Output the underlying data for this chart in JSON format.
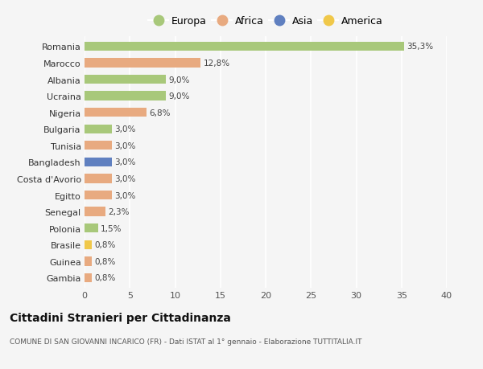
{
  "countries": [
    "Romania",
    "Marocco",
    "Albania",
    "Ucraina",
    "Nigeria",
    "Bulgaria",
    "Tunisia",
    "Bangladesh",
    "Costa d'Avorio",
    "Egitto",
    "Senegal",
    "Polonia",
    "Brasile",
    "Guinea",
    "Gambia"
  ],
  "values": [
    35.3,
    12.8,
    9.0,
    9.0,
    6.8,
    3.0,
    3.0,
    3.0,
    3.0,
    3.0,
    2.3,
    1.5,
    0.8,
    0.8,
    0.8
  ],
  "labels": [
    "35,3%",
    "12,8%",
    "9,0%",
    "9,0%",
    "6,8%",
    "3,0%",
    "3,0%",
    "3,0%",
    "3,0%",
    "3,0%",
    "2,3%",
    "1,5%",
    "0,8%",
    "0,8%",
    "0,8%"
  ],
  "continents": [
    "Europa",
    "Africa",
    "Europa",
    "Europa",
    "Africa",
    "Europa",
    "Africa",
    "Asia",
    "Africa",
    "Africa",
    "Africa",
    "Europa",
    "America",
    "Africa",
    "Africa"
  ],
  "continent_colors": {
    "Europa": "#a8c87a",
    "Africa": "#e8aa80",
    "Asia": "#6080c0",
    "America": "#f0c84a"
  },
  "legend_order": [
    "Europa",
    "Africa",
    "Asia",
    "America"
  ],
  "bg_color": "#f5f5f5",
  "grid_color": "#ffffff",
  "title": "Cittadini Stranieri per Cittadinanza",
  "subtitle": "COMUNE DI SAN GIOVANNI INCARICO (FR) - Dati ISTAT al 1° gennaio - Elaborazione TUTTITALIA.IT",
  "xlim": [
    0,
    40
  ],
  "xticks": [
    0,
    5,
    10,
    15,
    20,
    25,
    30,
    35,
    40
  ]
}
